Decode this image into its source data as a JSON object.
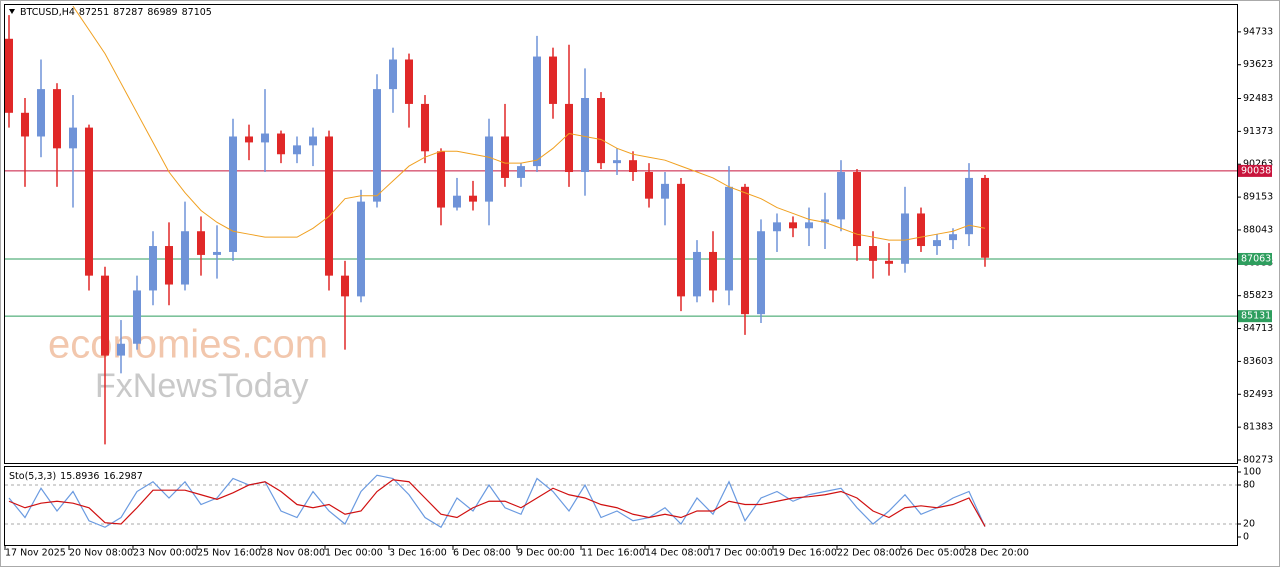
{
  "chart_data": [
    {
      "type": "candlestick",
      "title": "BTCUSD,H4",
      "title_values": [
        87251,
        87287,
        86989,
        87105
      ],
      "categories": [
        "17 Nov 2025",
        null,
        null,
        null,
        "20 Nov 08:00",
        null,
        null,
        null,
        "23 Nov 00:00",
        null,
        null,
        null,
        "25 Nov 16:00",
        null,
        null,
        null,
        "28 Nov 08:00",
        null,
        null,
        null,
        "1 Dec 00:00",
        null,
        null,
        null,
        "3 Dec 16:00",
        null,
        null,
        null,
        "6 Dec 08:00",
        null,
        null,
        null,
        "9 Dec 00:00",
        null,
        null,
        null,
        "11 Dec 16:00",
        null,
        null,
        null,
        "14 Dec 08:00",
        null,
        null,
        null,
        "17 Dec 00:00",
        null,
        null,
        null,
        "19 Dec 16:00",
        null,
        null,
        null,
        "22 Dec 08:00",
        null,
        null,
        null,
        "26 Dec 05:00",
        null,
        null,
        null,
        "28 Dec 20:00",
        null
      ],
      "open": [
        94500,
        92000,
        91200,
        92800,
        90800,
        91500,
        86500,
        83800,
        84200,
        86000,
        87500,
        86200,
        88000,
        87200,
        87300,
        91200,
        91000,
        91300,
        90600,
        90900,
        91200,
        86500,
        85800,
        89000,
        92800,
        93800,
        92300,
        90700,
        88800,
        89200,
        89000,
        91200,
        89800,
        90200,
        93900,
        92300,
        90000,
        92500,
        90300,
        90400,
        90000,
        89100,
        89600,
        85800,
        87300,
        86000,
        89500,
        85200,
        88000,
        88300,
        88100,
        88300,
        88400,
        90000,
        87500,
        87000,
        86900,
        88600,
        87500,
        87700,
        87900,
        89800
      ],
      "high": [
        95300,
        92500,
        93800,
        93000,
        92600,
        91600,
        86800,
        85000,
        86500,
        88000,
        88300,
        89000,
        88500,
        88200,
        91800,
        91600,
        92800,
        91400,
        91200,
        91500,
        91400,
        87000,
        89400,
        93300,
        94200,
        94000,
        92600,
        90800,
        89800,
        89700,
        91800,
        92300,
        90300,
        94600,
        94200,
        94300,
        93500,
        92700,
        90800,
        90700,
        90300,
        90000,
        89800,
        87700,
        88000,
        90200,
        89600,
        88400,
        88600,
        88500,
        88800,
        89300,
        90400,
        90100,
        88000,
        87600,
        89500,
        88800,
        87900,
        88100,
        90300,
        89900
      ],
      "low": [
        91500,
        89500,
        90500,
        89500,
        88800,
        86000,
        80800,
        83200,
        84000,
        85500,
        85500,
        86000,
        86500,
        86400,
        87000,
        90400,
        90000,
        90300,
        90300,
        90200,
        86000,
        84000,
        85600,
        88800,
        92000,
        91500,
        90300,
        88200,
        88700,
        88700,
        88200,
        89500,
        89500,
        90000,
        91800,
        89500,
        89200,
        90100,
        89900,
        89700,
        88800,
        88200,
        85300,
        85600,
        85600,
        85500,
        84500,
        84900,
        87300,
        87800,
        87500,
        87400,
        88000,
        87000,
        86400,
        86500,
        86600,
        87300,
        87200,
        87400,
        87500,
        86800
      ],
      "close": [
        92000,
        91200,
        92800,
        90800,
        91500,
        86500,
        83800,
        84200,
        86000,
        87500,
        86200,
        88000,
        87200,
        87300,
        91200,
        91000,
        91300,
        90600,
        90900,
        91200,
        86500,
        85800,
        89000,
        92800,
        93800,
        92300,
        90700,
        88800,
        89200,
        89000,
        91200,
        89800,
        90200,
        93900,
        92300,
        90000,
        92500,
        90300,
        90400,
        90000,
        89100,
        89600,
        85800,
        87300,
        86000,
        89500,
        85200,
        88000,
        88300,
        88100,
        88300,
        88400,
        90000,
        87500,
        87000,
        86900,
        88600,
        87500,
        87700,
        87900,
        89800,
        87105
      ],
      "up_color": "#6f93d8",
      "down_color": "#e02828",
      "ma": {
        "color": "#f0a020",
        "values": [
          null,
          null,
          null,
          null,
          95600,
          94800,
          94000,
          93000,
          92000,
          91000,
          90000,
          89300,
          88700,
          88300,
          88000,
          87900,
          87800,
          87800,
          87800,
          88100,
          88500,
          89100,
          89200,
          89200,
          89700,
          90200,
          90500,
          90700,
          90700,
          90600,
          90500,
          90300,
          90300,
          90400,
          90800,
          91300,
          91200,
          91100,
          90800,
          90600,
          90500,
          90400,
          90200,
          90000,
          89800,
          89500,
          89300,
          89100,
          88800,
          88600,
          88400,
          88300,
          88100,
          87900,
          87800,
          87700,
          87700,
          87800,
          87900,
          88000,
          88200,
          88100
        ]
      },
      "levels": [
        {
          "value": 90038,
          "color": "#c8143c"
        },
        {
          "value": 87063,
          "color": "#2e9e5e"
        },
        {
          "value": 85131,
          "color": "#2e9e5e"
        }
      ],
      "ylim": [
        80172,
        95641
      ],
      "yticks": [
        94733,
        93623,
        92483,
        91373,
        90263,
        89153,
        88043,
        86933,
        85823,
        84713,
        83603,
        82493,
        81383,
        80273
      ],
      "watermark": [
        "economies.com",
        "FxNewsToday"
      ]
    },
    {
      "type": "line",
      "title": "Sto(5,3,3)",
      "title_values": [
        15.8936,
        16.2987
      ],
      "series": [
        {
          "color": "#6a9ae0",
          "values": [
            60,
            30,
            75,
            40,
            70,
            25,
            15,
            30,
            70,
            85,
            60,
            85,
            50,
            60,
            90,
            80,
            85,
            40,
            30,
            70,
            40,
            20,
            70,
            95,
            90,
            65,
            30,
            15,
            60,
            40,
            80,
            45,
            35,
            90,
            70,
            40,
            80,
            30,
            40,
            25,
            30,
            45,
            20,
            60,
            35,
            85,
            25,
            60,
            70,
            55,
            65,
            70,
            75,
            45,
            20,
            40,
            65,
            35,
            45,
            60,
            70,
            15.8936
          ]
        },
        {
          "color": "#d01010",
          "values": [
            55,
            45,
            52,
            55,
            52,
            45,
            22,
            20,
            45,
            72,
            72,
            72,
            65,
            58,
            68,
            80,
            85,
            70,
            50,
            45,
            50,
            35,
            40,
            70,
            88,
            85,
            60,
            35,
            30,
            45,
            55,
            55,
            45,
            60,
            75,
            65,
            60,
            50,
            45,
            35,
            30,
            35,
            30,
            40,
            40,
            55,
            50,
            50,
            55,
            60,
            62,
            65,
            70,
            60,
            40,
            30,
            45,
            48,
            45,
            50,
            60,
            16.2987
          ]
        }
      ],
      "levels": [
        80,
        20
      ],
      "ylim": [
        -12.3,
        107.7
      ],
      "yticks": [
        100,
        80,
        20,
        0
      ]
    }
  ]
}
